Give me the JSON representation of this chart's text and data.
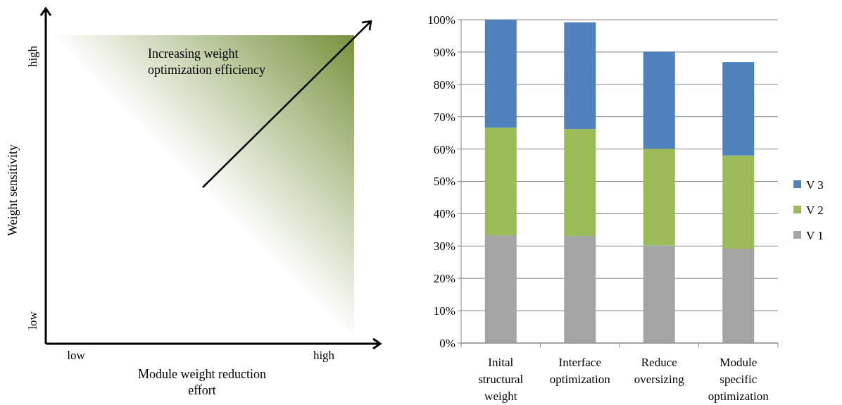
{
  "chart_data": [
    {
      "type": "other",
      "xlabel": "Module weight reduction effort",
      "ylabel": "Weight sensitivity",
      "categories": [
        "low",
        "high"
      ],
      "y_categories": [
        "low",
        "high"
      ],
      "annotations": [
        "Increasing weight optimization efficiency"
      ],
      "color": "#76923c"
    },
    {
      "type": "bar",
      "stacked": true,
      "categories": [
        "Inital structural weight",
        "Interface optimization",
        "Reduce oversizing",
        "Module specific optimization"
      ],
      "series": [
        {
          "name": "V 1",
          "color": "#a5a5a5",
          "values": [
            33.3,
            33.1,
            30.2,
            29.2
          ]
        },
        {
          "name": "V 2",
          "color": "#9bbb59",
          "values": [
            33.3,
            33.1,
            29.9,
            28.8
          ]
        },
        {
          "name": "V 3",
          "color": "#4f81bd",
          "values": [
            33.4,
            33.0,
            30.0,
            28.9
          ]
        }
      ],
      "ylim": [
        0,
        100
      ],
      "yticks": [
        {
          "value": 0,
          "label": "0%"
        },
        {
          "value": 10,
          "label": "10%"
        },
        {
          "value": 20,
          "label": "20%"
        },
        {
          "value": 30,
          "label": "30%"
        },
        {
          "value": 40,
          "label": "40%"
        },
        {
          "value": 50,
          "label": "50%"
        },
        {
          "value": 60,
          "label": "60%"
        },
        {
          "value": 70,
          "label": "70%"
        },
        {
          "value": 80,
          "label": "80%"
        },
        {
          "value": 90,
          "label": "90%"
        },
        {
          "value": 100,
          "label": "100%"
        }
      ],
      "grid": "y",
      "legend": "right"
    }
  ]
}
